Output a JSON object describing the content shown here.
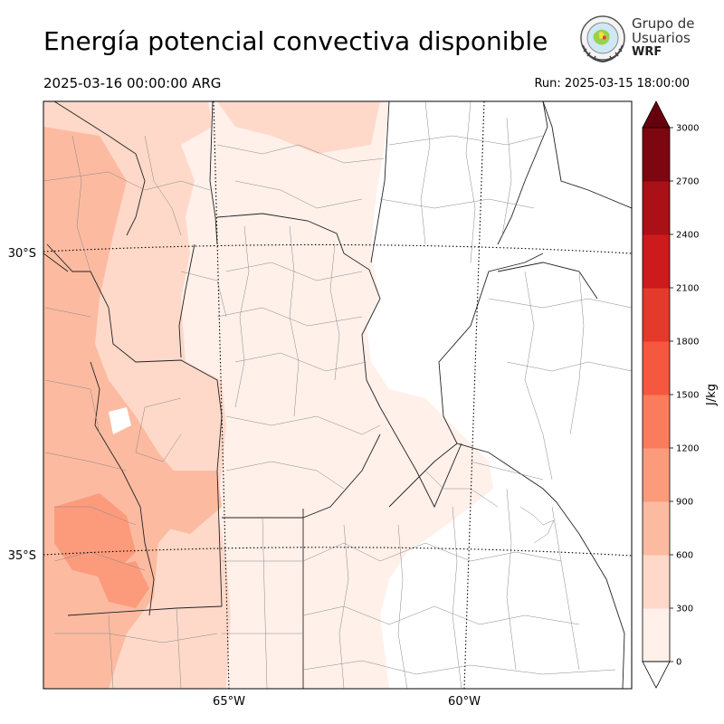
{
  "title": "Energía potencial convectiva disponible",
  "valid_time": "2025-03-16 00:00:00 ARG",
  "run_time": "Run: 2025-03-15 18:00:00",
  "logo": {
    "line1": "Grupo de",
    "line2": "Usuarios",
    "line3": "WRF"
  },
  "axes": {
    "lat_labels": [
      "30°S",
      "35°S"
    ],
    "lon_labels": [
      "65°W",
      "60°W"
    ]
  },
  "colorbar": {
    "unit": "J/kg",
    "ticks": [
      "0",
      "300",
      "600",
      "900",
      "1200",
      "1500",
      "1800",
      "2100",
      "2400",
      "2700",
      "3000"
    ],
    "colors": [
      "#fff0ea",
      "#fed9c9",
      "#fcbba1",
      "#fc9b7c",
      "#fb7c5c",
      "#f6573f",
      "#e43a2c",
      "#cc1a1d",
      "#ab1016",
      "#7d0610"
    ],
    "extend_over_color": "#67000d"
  }
}
